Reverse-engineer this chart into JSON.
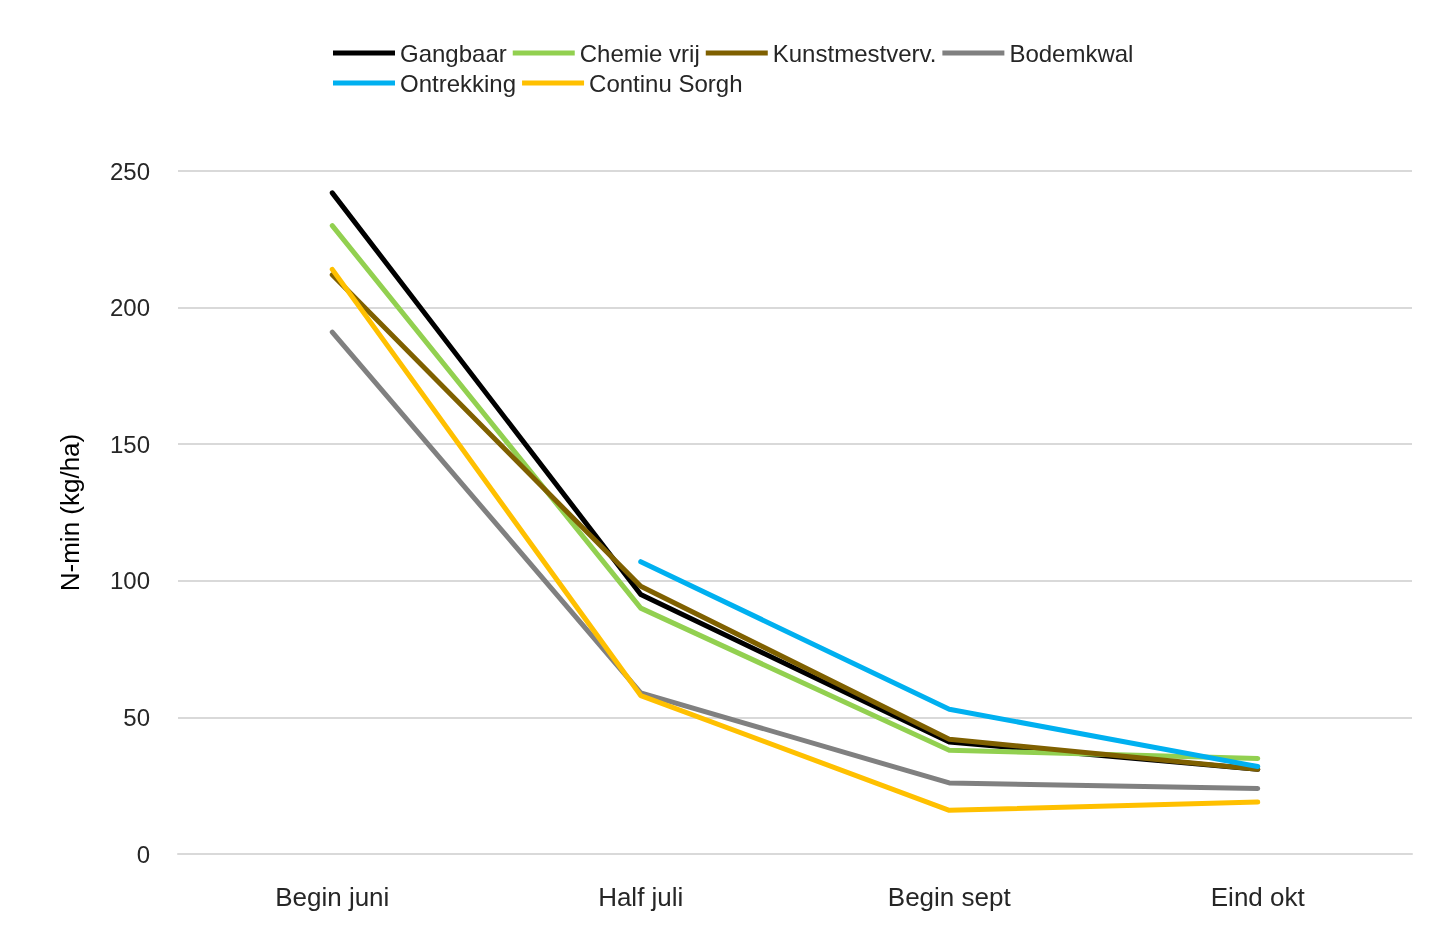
{
  "chart_data": {
    "type": "line",
    "ylabel": "N-min (kg/ha)",
    "categories": [
      "Begin juni",
      "Half juli",
      "Begin sept",
      "Eind okt"
    ],
    "series": [
      {
        "name": "Gangbaar",
        "color": "#000000",
        "values": [
          242,
          95,
          41,
          31
        ]
      },
      {
        "name": "Chemie vrij",
        "color": "#92d050",
        "values": [
          230,
          90,
          38,
          35
        ]
      },
      {
        "name": "Kunstmestverv.",
        "color": "#7f6000",
        "values": [
          212,
          98,
          42,
          31
        ]
      },
      {
        "name": "Bodemkwal",
        "color": "#808080",
        "values": [
          191,
          59,
          26,
          24
        ]
      },
      {
        "name": "Ontrekking",
        "color": "#00b0f0",
        "values": [
          null,
          107,
          53,
          32
        ]
      },
      {
        "name": "Continu Sorgh",
        "color": "#ffc000",
        "values": [
          214,
          58,
          16,
          19
        ]
      }
    ],
    "ylim": [
      0,
      250
    ],
    "yticks": [
      0,
      50,
      100,
      150,
      200,
      250
    ],
    "grid": "y",
    "legend": "top",
    "marker": "none",
    "line_style": "solid"
  }
}
